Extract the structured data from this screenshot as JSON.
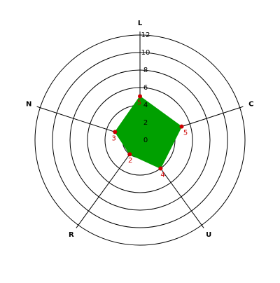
{
  "chart_data": {
    "type": "radar",
    "categories": [
      "L",
      "C",
      "U",
      "R",
      "N"
    ],
    "values": [
      5,
      5,
      4,
      2,
      3
    ],
    "fill_color": "#00a000",
    "point_color": "#cc0000",
    "ylim": [
      0,
      12
    ],
    "yticks": [
      0,
      2,
      4,
      6,
      8,
      10,
      12
    ]
  }
}
